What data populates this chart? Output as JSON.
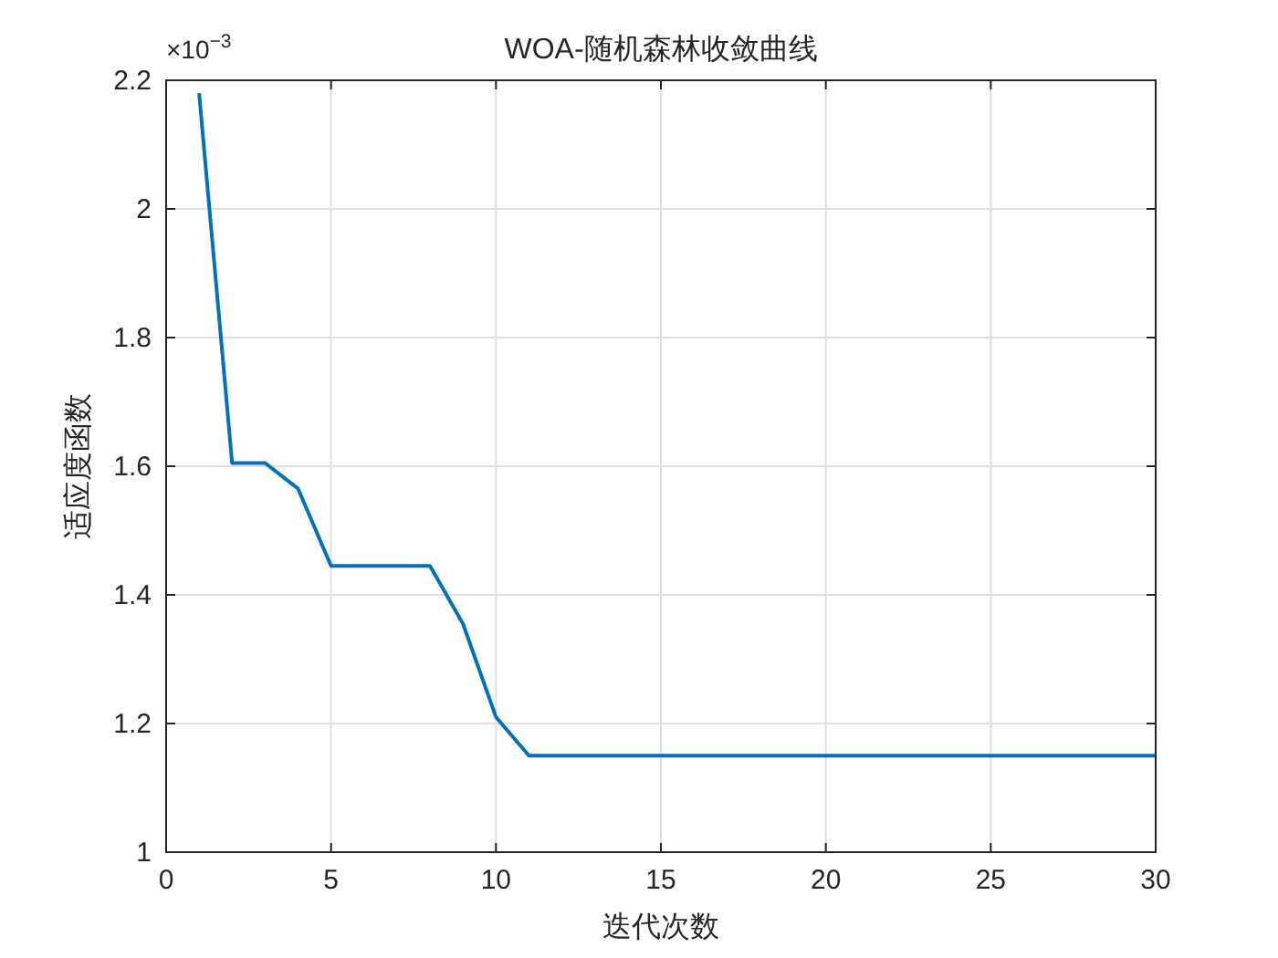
{
  "chart_data": {
    "type": "line",
    "title": "WOA-随机森林收敛曲线",
    "xlabel": "迭代次数",
    "ylabel": "适应度函数",
    "x": [
      1,
      2,
      3,
      4,
      5,
      6,
      7,
      8,
      9,
      10,
      11,
      12,
      13,
      14,
      15,
      16,
      17,
      18,
      19,
      20,
      21,
      22,
      23,
      24,
      25,
      26,
      27,
      28,
      29,
      30
    ],
    "series": [
      {
        "color": "#0072bd",
        "values": [
          2.18,
          1.605,
          1.605,
          1.565,
          1.445,
          1.445,
          1.445,
          1.445,
          1.355,
          1.21,
          1.15,
          1.15,
          1.15,
          1.15,
          1.15,
          1.15,
          1.15,
          1.15,
          1.15,
          1.15,
          1.15,
          1.15,
          1.15,
          1.15,
          1.15,
          1.15,
          1.15,
          1.15,
          1.15,
          1.15
        ]
      }
    ],
    "xlim": [
      0,
      30
    ],
    "xticks": [
      0,
      5,
      10,
      15,
      20,
      25,
      30
    ],
    "ylim": [
      1,
      2.2
    ],
    "yticks": [
      1,
      1.2,
      1.4,
      1.6,
      1.8,
      2,
      2.2
    ],
    "annotations": [
      "×10$^{−3}$"
    ],
    "grid": true,
    "marker": "none",
    "line_style": "solid"
  }
}
